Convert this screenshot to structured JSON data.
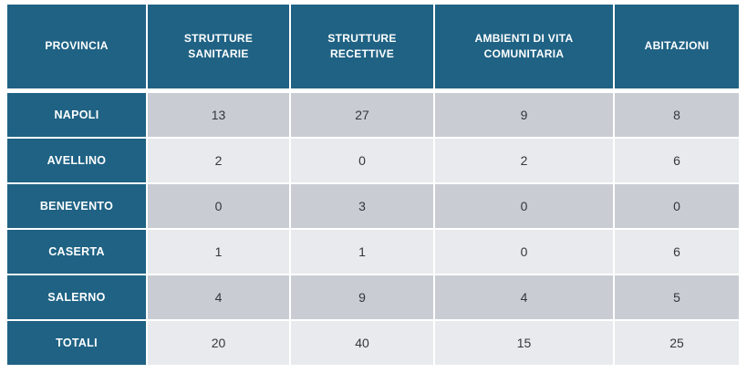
{
  "chart_data": {
    "type": "table",
    "columns": [
      "PROVINCIA",
      "STRUTTURE SANITARIE",
      "STRUTTURE RECETTIVE",
      "AMBIENTI DI VITA COMUNITARIA",
      "ABITAZIONI"
    ],
    "rows": [
      {
        "label": "NAPOLI",
        "values": [
          13,
          27,
          9,
          8
        ]
      },
      {
        "label": "AVELLINO",
        "values": [
          2,
          0,
          2,
          6
        ]
      },
      {
        "label": "BENEVENTO",
        "values": [
          0,
          3,
          0,
          0
        ]
      },
      {
        "label": "CASERTA",
        "values": [
          1,
          1,
          0,
          6
        ]
      },
      {
        "label": "SALERNO",
        "values": [
          4,
          9,
          4,
          5
        ]
      },
      {
        "label": "TOTALI",
        "values": [
          20,
          40,
          15,
          25
        ]
      }
    ],
    "colors": {
      "header_bg": "#1F6284",
      "header_text": "#FFFFFF",
      "row_dark": "#C9CDD3",
      "row_light": "#E8EAED",
      "value_text": "#33373C"
    }
  }
}
